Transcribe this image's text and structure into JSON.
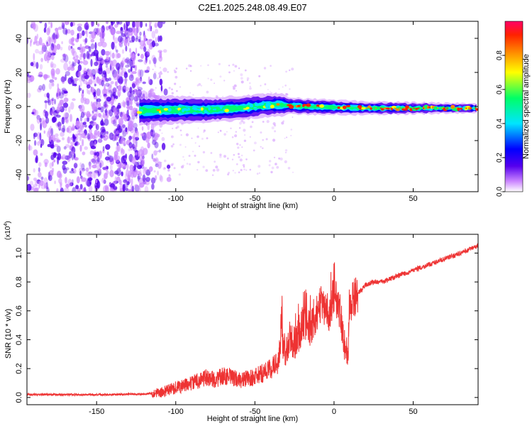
{
  "title": "C2E1.2025.248.08.49.E07",
  "chart_data": [
    {
      "type": "heatmap",
      "xlabel": "Height of straight line (km)",
      "ylabel": "Frequency (Hz)",
      "xlim": [
        -194,
        91
      ],
      "ylim": [
        -50,
        50
      ],
      "xticks": [
        -150,
        -100,
        -50,
        0,
        50
      ],
      "xtick_labels": [
        "-150",
        "-100",
        "-50",
        "0",
        "50"
      ],
      "yticks": [
        -40,
        -20,
        0,
        20,
        40
      ],
      "ytick_labels": [
        "-40",
        "-20",
        "0",
        "20",
        "40"
      ],
      "colorbar": {
        "label": "Normalized spectral amplitude",
        "range": [
          0,
          1
        ],
        "ticks": [
          0.0,
          0.2,
          0.4,
          0.6,
          0.8
        ],
        "tick_labels": [
          "0.0",
          "0.2",
          "0.4",
          "0.6",
          "0.8"
        ],
        "colors": [
          "#ffffff",
          "#cc88ff",
          "#5500ee",
          "#0000ff",
          "#00e5ff",
          "#00ff66",
          "#ffff00",
          "#ff8800",
          "#ff2200",
          "#ff0066"
        ]
      },
      "noise_region_x": [
        -194,
        -115
      ],
      "carrier_track": [
        {
          "x": -123,
          "f": -2.5
        },
        {
          "x": -100,
          "f": -2.0
        },
        {
          "x": -80,
          "f": -2.0
        },
        {
          "x": -60,
          "f": -1.0
        },
        {
          "x": -45,
          "f": 0.5
        },
        {
          "x": -35,
          "f": 1.0
        },
        {
          "x": -20,
          "f": 0.0
        },
        {
          "x": 0,
          "f": -0.5
        },
        {
          "x": 20,
          "f": -1.0
        },
        {
          "x": 50,
          "f": -1.0
        },
        {
          "x": 90,
          "f": -1.0
        }
      ]
    },
    {
      "type": "line",
      "xlabel": "Height of straight line (km)",
      "ylabel": "SNR (10 * v/v)",
      "y_multiplier_label": "(x10",
      "y_multiplier_exp": "4",
      "xlim": [
        -194,
        91
      ],
      "ylim": [
        -0.05,
        1.13
      ],
      "xticks": [
        -150,
        -100,
        -50,
        0,
        50
      ],
      "xtick_labels": [
        "-150",
        "-100",
        "-50",
        "0",
        "50"
      ],
      "yticks": [
        0.0,
        0.2,
        0.4,
        0.6,
        0.8,
        1.0
      ],
      "ytick_labels": [
        "0.0",
        "0.2",
        "0.4",
        "0.6",
        "0.8",
        "1.0"
      ],
      "series": [
        {
          "name": "SNR",
          "color": "#ee3333",
          "x": [
            -194,
            -180,
            -160,
            -140,
            -120,
            -110,
            -105,
            -100,
            -95,
            -90,
            -85,
            -80,
            -75,
            -70,
            -65,
            -60,
            -55,
            -50,
            -45,
            -40,
            -35,
            -33,
            -32,
            -30,
            -28,
            -25,
            -22,
            -20,
            -18,
            -15,
            -12,
            -10,
            -8,
            -5,
            -3,
            -1,
            0,
            2,
            4,
            6,
            7,
            8,
            9,
            10,
            12,
            15,
            18,
            20,
            25,
            30,
            40,
            50,
            60,
            70,
            80,
            91
          ],
          "y": [
            0.02,
            0.02,
            0.02,
            0.02,
            0.025,
            0.03,
            0.05,
            0.07,
            0.08,
            0.1,
            0.12,
            0.14,
            0.12,
            0.15,
            0.14,
            0.12,
            0.13,
            0.14,
            0.17,
            0.2,
            0.25,
            0.55,
            0.3,
            0.33,
            0.4,
            0.38,
            0.45,
            0.5,
            0.52,
            0.48,
            0.55,
            0.6,
            0.65,
            0.62,
            0.58,
            0.68,
            0.72,
            0.65,
            0.6,
            0.42,
            0.35,
            0.3,
            0.38,
            0.6,
            0.68,
            0.72,
            0.75,
            0.78,
            0.8,
            0.8,
            0.84,
            0.88,
            0.92,
            0.96,
            1.0,
            1.05
          ]
        }
      ]
    }
  ]
}
